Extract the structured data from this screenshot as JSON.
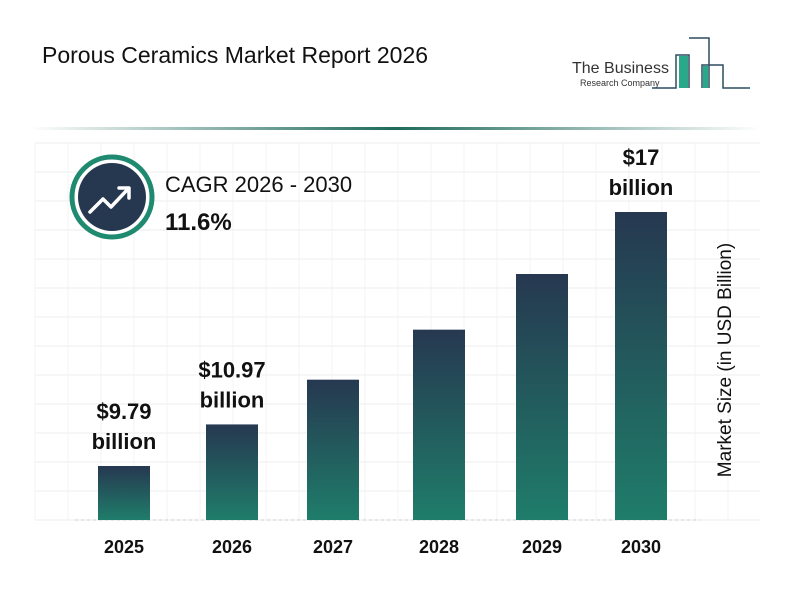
{
  "title": "Porous Ceramics Market Report 2026",
  "logo": {
    "line1": "The Business",
    "line2": "Research Company"
  },
  "cagr": {
    "label": "CAGR 2026 - 2030",
    "value": "11.6%",
    "icon": "trend-up-arrow-icon"
  },
  "colors": {
    "bar_top": "#263850",
    "bar_bottom": "#1f7d6a",
    "accent": "#1f8a70",
    "icon_bg": "#263850"
  },
  "chart_data": {
    "type": "bar",
    "categories": [
      "2025",
      "2026",
      "2027",
      "2028",
      "2029",
      "2030"
    ],
    "values": [
      9.79,
      10.97,
      12.24,
      13.66,
      15.24,
      17.0
    ],
    "data_labels": [
      {
        "index": 0,
        "value": "$9.79",
        "unit": "billion"
      },
      {
        "index": 1,
        "value": "$10.97",
        "unit": "billion"
      },
      {
        "index": 5,
        "value": "$17",
        "unit": "billion"
      }
    ],
    "ylabel": "Market Size (in USD Billion)",
    "xlabel": "",
    "grid": true
  }
}
